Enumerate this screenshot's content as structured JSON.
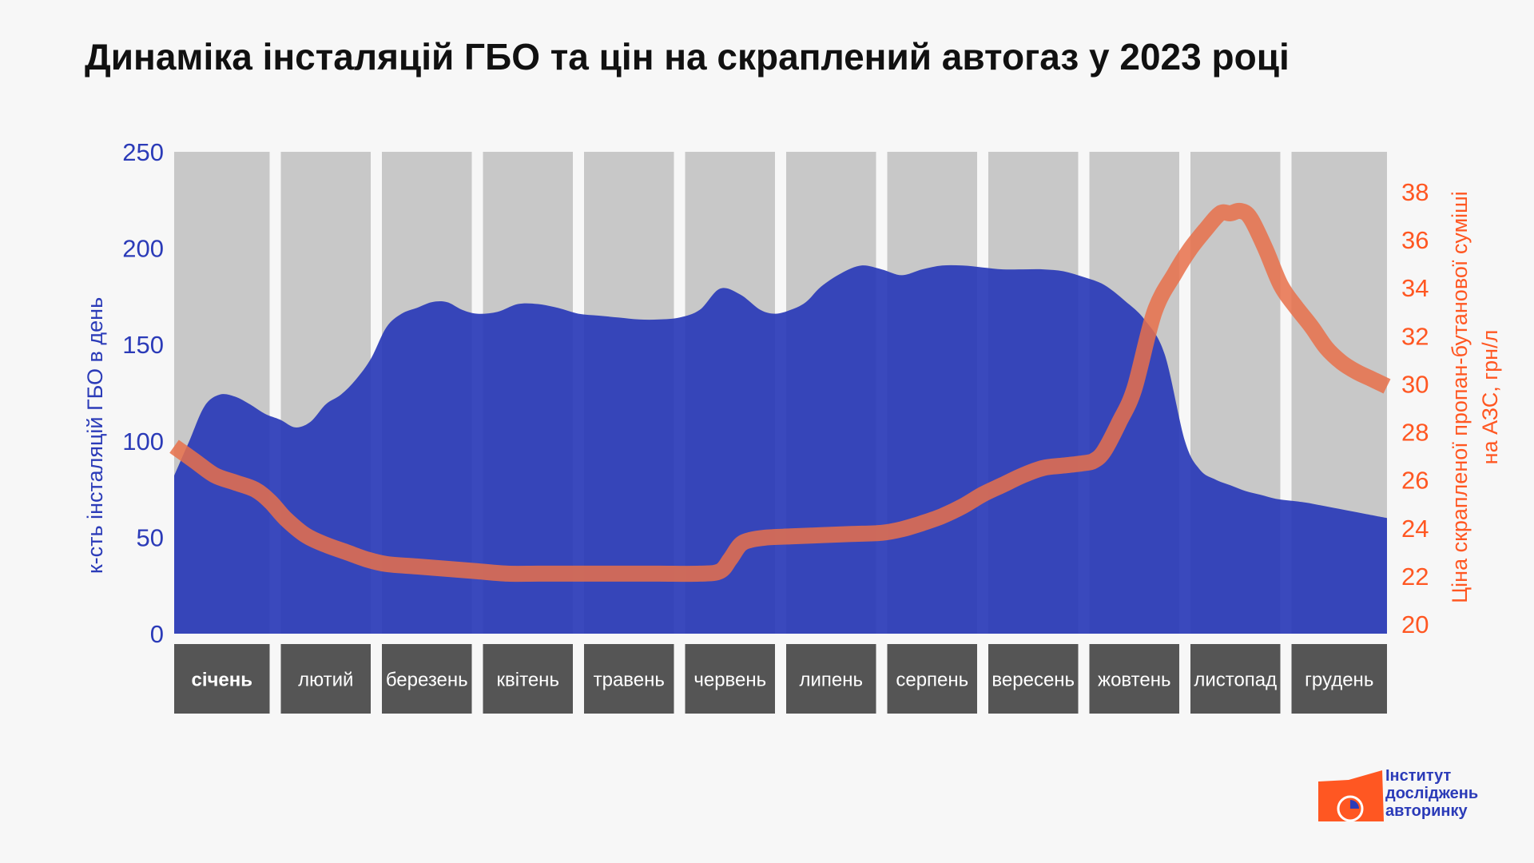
{
  "title": "Динаміка інсталяцій ГБО та цін на скраплений автогаз у 2023 році",
  "colors": {
    "installs": "#2b3bb8",
    "price": "#e8704a",
    "price_text": "#ff5722",
    "month_band": "#c8c8c8",
    "month_label_bg": "#555555",
    "background": "#f7f7f7"
  },
  "logo": {
    "line1": "Інститут",
    "line2": "досліджень",
    "line3": "авторинку",
    "icon": "car-pie-chart-icon"
  },
  "chart_data": {
    "type": "area",
    "months": [
      "січень",
      "лютий",
      "березень",
      "квітень",
      "травень",
      "червень",
      "липень",
      "серпень",
      "вересень",
      "жовтень",
      "листопад",
      "грудень"
    ],
    "highlighted_month": "січень",
    "y_left": {
      "label": "к-сть інсталяцій ГБО в день",
      "range": [
        0,
        250
      ],
      "ticks": [
        0,
        50,
        100,
        150,
        200,
        250
      ]
    },
    "y_right": {
      "label_line1": "Ціна скрапленої пропан-бутанової суміші",
      "label_line2": "на АЗС, грн/л",
      "range": [
        20,
        38
      ],
      "ticks": [
        20,
        22,
        24,
        26,
        28,
        30,
        32,
        34,
        36,
        38
      ]
    },
    "x_range": [
      1,
      13
    ],
    "grid": false,
    "series": [
      {
        "type": "area",
        "axis": "left",
        "x": [
          1,
          1.15,
          1.3,
          1.45,
          1.6,
          1.75,
          1.9,
          2.05,
          2.2,
          2.35,
          2.5,
          2.65,
          2.8,
          2.95,
          3.1,
          3.25,
          3.4,
          3.55,
          3.7,
          3.85,
          4.0,
          4.2,
          4.4,
          4.6,
          4.8,
          5.0,
          5.2,
          5.4,
          5.6,
          5.8,
          6.0,
          6.2,
          6.4,
          6.6,
          6.8,
          6.95,
          7.1,
          7.25,
          7.4,
          7.6,
          7.8,
          8.0,
          8.2,
          8.4,
          8.6,
          8.8,
          9.0,
          9.2,
          9.4,
          9.6,
          9.8,
          10.0,
          10.2,
          10.4,
          10.6,
          10.8,
          11.0,
          11.15,
          11.3,
          11.45,
          11.6,
          11.75,
          11.9,
          12.05,
          12.2,
          12.4,
          12.6,
          12.8,
          13.0
        ],
        "values": [
          82,
          100,
          118,
          124,
          123,
          119,
          114,
          111,
          107,
          110,
          119,
          124,
          132,
          143,
          159,
          166,
          169,
          172,
          172,
          168,
          166,
          167,
          171,
          171,
          169,
          166,
          165,
          164,
          163,
          163,
          164,
          168,
          179,
          176,
          168,
          166,
          168,
          172,
          180,
          187,
          191,
          189,
          186,
          189,
          191,
          191,
          190,
          189,
          189,
          189,
          188,
          185,
          181,
          173,
          163,
          145,
          100,
          85,
          80,
          77,
          74,
          72,
          70,
          69,
          68,
          66,
          64,
          62,
          60
        ]
      },
      {
        "type": "line",
        "axis": "right",
        "x": [
          1,
          1.2,
          1.4,
          1.6,
          1.8,
          1.95,
          2.1,
          2.3,
          2.5,
          2.7,
          2.9,
          3.1,
          3.4,
          3.7,
          4.0,
          4.3,
          4.6,
          5.0,
          5.4,
          5.8,
          6.2,
          6.4,
          6.5,
          6.6,
          6.7,
          6.85,
          7.1,
          7.4,
          7.7,
          8.0,
          8.2,
          8.4,
          8.6,
          8.8,
          9.0,
          9.2,
          9.4,
          9.6,
          9.8,
          10.0,
          10.1,
          10.2,
          10.35,
          10.5,
          10.7,
          10.9,
          11.05,
          11.2,
          11.35,
          11.45,
          11.55,
          11.65,
          11.8,
          11.95,
          12.1,
          12.25,
          12.4,
          12.55,
          12.7,
          12.85,
          13.0
        ],
        "values": [
          27.4,
          26.8,
          26.2,
          25.9,
          25.6,
          25.1,
          24.4,
          23.7,
          23.3,
          23.0,
          22.7,
          22.5,
          22.4,
          22.3,
          22.2,
          22.1,
          22.1,
          22.1,
          22.1,
          22.1,
          22.1,
          22.2,
          22.7,
          23.3,
          23.5,
          23.6,
          23.65,
          23.7,
          23.75,
          23.8,
          23.95,
          24.2,
          24.5,
          24.9,
          25.4,
          25.8,
          26.2,
          26.5,
          26.6,
          26.7,
          26.8,
          27.2,
          28.4,
          29.8,
          33.0,
          34.6,
          35.6,
          36.4,
          37.1,
          37.1,
          37.2,
          36.9,
          35.6,
          34.1,
          33.2,
          32.4,
          31.5,
          30.9,
          30.5,
          30.2,
          29.9
        ]
      }
    ]
  }
}
